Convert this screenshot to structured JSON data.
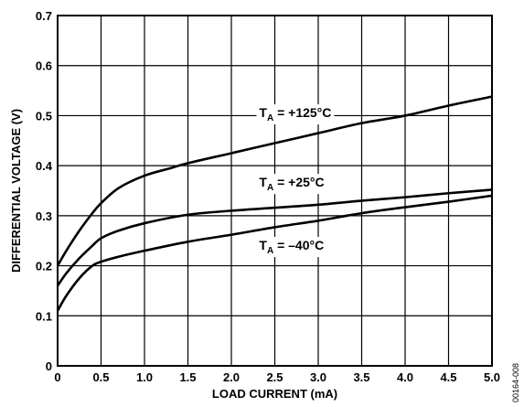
{
  "chart_data": {
    "type": "line",
    "xlabel": "LOAD CURRENT (mA)",
    "ylabel": "DIFFERENTIAL VOLTAGE (V)",
    "xlim": [
      0,
      5.0
    ],
    "ylim": [
      0,
      0.7
    ],
    "grid": true,
    "x_ticks": [
      "0",
      "0.5",
      "1.0",
      "1.5",
      "2.0",
      "2.5",
      "3.0",
      "3.5",
      "4.0",
      "4.5",
      "5.0"
    ],
    "y_ticks": [
      "0",
      "0.1",
      "0.2",
      "0.3",
      "0.4",
      "0.5",
      "0.6",
      "0.7"
    ],
    "series": [
      {
        "name": "T_A = +125°C",
        "label_main": "T",
        "label_sub": "A",
        "label_rest": " = +125°C",
        "x": [
          0,
          0.1,
          0.25,
          0.4,
          0.5,
          0.7,
          1.0,
          1.3,
          1.5,
          2.0,
          2.5,
          3.0,
          3.5,
          4.0,
          4.5,
          5.0
        ],
        "y": [
          0.2,
          0.23,
          0.27,
          0.305,
          0.325,
          0.355,
          0.38,
          0.395,
          0.405,
          0.425,
          0.445,
          0.465,
          0.485,
          0.5,
          0.52,
          0.538
        ]
      },
      {
        "name": "T_A = +25°C",
        "label_main": "T",
        "label_sub": "A",
        "label_rest": " = +25°C",
        "x": [
          0,
          0.1,
          0.25,
          0.4,
          0.5,
          0.7,
          1.0,
          1.5,
          2.0,
          2.5,
          3.0,
          3.5,
          4.0,
          4.5,
          5.0
        ],
        "y": [
          0.16,
          0.185,
          0.215,
          0.24,
          0.255,
          0.27,
          0.285,
          0.302,
          0.31,
          0.316,
          0.322,
          0.33,
          0.337,
          0.345,
          0.352
        ]
      },
      {
        "name": "T_A = –40°C",
        "label_main": "T",
        "label_sub": "A",
        "label_rest": " = –40°C",
        "x": [
          0,
          0.1,
          0.25,
          0.4,
          0.5,
          0.7,
          1.0,
          1.5,
          2.0,
          2.5,
          3.0,
          3.5,
          4.0,
          4.5,
          5.0
        ],
        "y": [
          0.11,
          0.14,
          0.175,
          0.2,
          0.208,
          0.218,
          0.23,
          0.248,
          0.262,
          0.277,
          0.29,
          0.305,
          0.317,
          0.328,
          0.34
        ]
      }
    ],
    "figure_code": "00164-008"
  }
}
